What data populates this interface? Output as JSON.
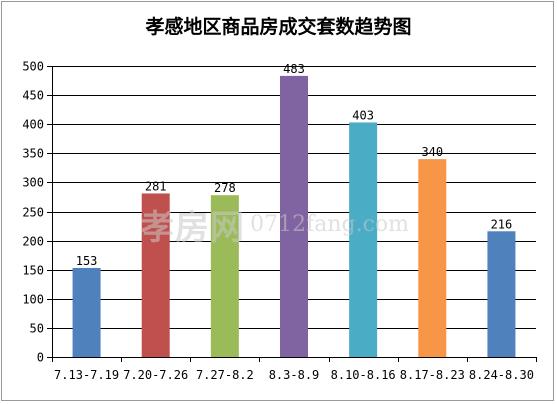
{
  "chart_data": {
    "type": "bar",
    "title": "孝感地区商品房成交套数趋势图",
    "categories": [
      "7.13-7.19",
      "7.20-7.26",
      "7.27-8.2",
      "8.3-8.9",
      "8.10-8.16",
      "8.17-8.23",
      "8.24-8.30"
    ],
    "series": [
      {
        "values": [
          153,
          281,
          278,
          483,
          403,
          340,
          216
        ]
      }
    ],
    "colors": [
      "#4f81bd",
      "#c0504d",
      "#9bbb59",
      "#8064a2",
      "#4bacc6",
      "#f79646",
      "#4f81bd"
    ],
    "xlabel": "",
    "ylabel": "",
    "ylim": [
      0,
      500
    ],
    "yticks": [
      0,
      50,
      100,
      150,
      200,
      250,
      300,
      350,
      400,
      450,
      500
    ],
    "grid": true,
    "legend": "none"
  },
  "watermark": {
    "cn_text": "孝房网",
    "domain_text": "0712fang.com"
  }
}
